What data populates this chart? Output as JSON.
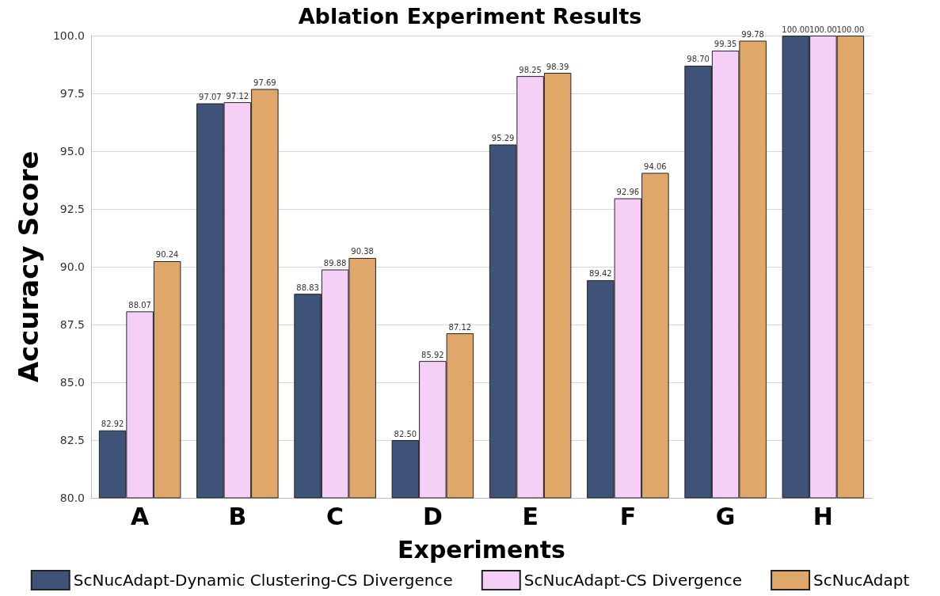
{
  "chart_data": {
    "type": "bar",
    "title": "Ablation Experiment Results",
    "xlabel": "Experiments",
    "ylabel": "Accuracy Score",
    "categories": [
      "A",
      "B",
      "C",
      "D",
      "E",
      "F",
      "G",
      "H"
    ],
    "series": [
      {
        "name": "ScNucAdapt-Dynamic Clustering-CS Divergence",
        "color": "#3f5277",
        "values": [
          82.92,
          97.07,
          88.83,
          82.5,
          95.29,
          89.42,
          98.7,
          100
        ],
        "value_labels": [
          "82.92",
          "97.07",
          "88.83",
          "82.50",
          "95.29",
          "89.42",
          "98.70",
          "100.00"
        ]
      },
      {
        "name": "ScNucAdapt-CS Divergence",
        "color": "#f5cff5",
        "values": [
          88.07,
          97.12,
          89.88,
          85.92,
          98.25,
          92.96,
          99.35,
          100
        ],
        "value_labels": [
          "88.07",
          "97.12",
          "89.88",
          "85.92",
          "98.25",
          "92.96",
          "99.35",
          "100.00"
        ]
      },
      {
        "name": "ScNucAdapt",
        "color": "#e0a76b",
        "values": [
          90.24,
          97.69,
          90.38,
          87.12,
          98.39,
          94.06,
          99.78,
          100
        ],
        "value_labels": [
          "90.24",
          "97.69",
          "90.38",
          "87.12",
          "98.39",
          "94.06",
          "99.78",
          "100.00"
        ]
      }
    ],
    "ylim": [
      80,
      100
    ],
    "yticks": [
      {
        "value": 80,
        "label": "80.0"
      },
      {
        "value": 82.5,
        "label": "82.5"
      },
      {
        "value": 85,
        "label": "85.0"
      },
      {
        "value": 87.5,
        "label": "87.5"
      },
      {
        "value": 90,
        "label": "90.0"
      },
      {
        "value": 92.5,
        "label": "92.5"
      },
      {
        "value": 95,
        "label": "95.0"
      },
      {
        "value": 97.5,
        "label": "97.5"
      },
      {
        "value": 100,
        "label": "100.0"
      }
    ],
    "grid": "y",
    "legend": "bottom"
  }
}
